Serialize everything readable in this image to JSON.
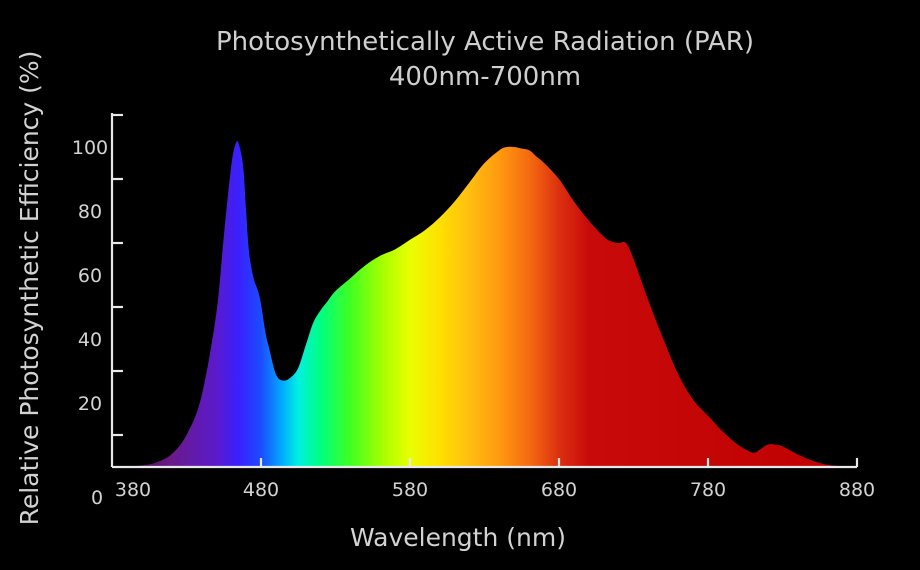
{
  "chart_data": {
    "type": "area",
    "title": "Photosynthetically Active Radiation (PAR)",
    "subtitle": "400nm-700nm",
    "xlabel": "Wavelength (nm)",
    "ylabel": "Relative Photosynthetic Efficiency (%)",
    "xlim": [
      380,
      880
    ],
    "ylim": [
      0,
      110
    ],
    "x_ticks": [
      380,
      480,
      580,
      680,
      780,
      880
    ],
    "y_ticks": [
      0,
      20,
      40,
      60,
      80,
      100
    ],
    "grid": false,
    "legend": "none",
    "fill": "rainbow spectrum gradient",
    "series": [
      {
        "x": [
          385,
          400,
          410,
          420,
          430,
          440,
          450,
          455,
          460,
          463,
          465,
          468,
          470,
          472,
          475,
          478,
          480,
          483,
          485,
          490,
          495,
          500,
          505,
          510,
          515,
          520,
          525,
          530,
          540,
          550,
          560,
          570,
          580,
          590,
          600,
          610,
          620,
          630,
          640,
          645,
          650,
          655,
          660,
          665,
          670,
          680,
          690,
          700,
          710,
          715,
          720,
          725,
          730,
          740,
          750,
          760,
          770,
          780,
          790,
          800,
          810,
          815,
          820,
          825,
          830,
          840,
          850,
          860,
          870,
          875
        ],
        "y": [
          0,
          0.5,
          1.5,
          4,
          10,
          22,
          48,
          72,
          94,
          101,
          101,
          94,
          80,
          67,
          59,
          55,
          51,
          42,
          38,
          29,
          27,
          28,
          31,
          38,
          45,
          49,
          52,
          55,
          59,
          63,
          66,
          68,
          71,
          74,
          78,
          83,
          89,
          95,
          99,
          100,
          100,
          99.5,
          99,
          97,
          95,
          90,
          83,
          77,
          72,
          70.5,
          70,
          70,
          65,
          52,
          40,
          29,
          21,
          16,
          11,
          7,
          4.5,
          5.5,
          7,
          7,
          6.5,
          4,
          2,
          0.7,
          0.2,
          0
        ]
      }
    ]
  }
}
